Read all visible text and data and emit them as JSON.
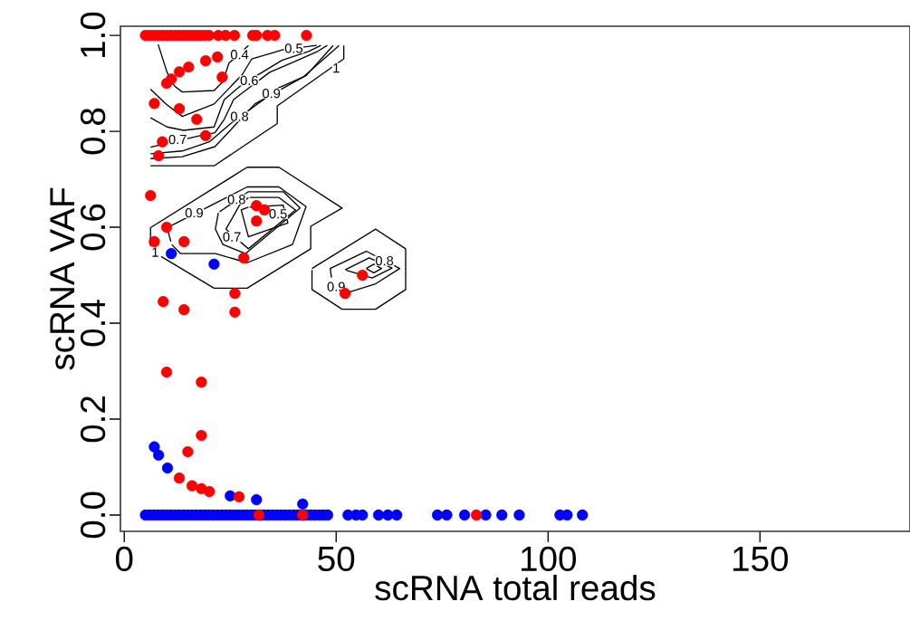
{
  "chart_data": {
    "type": "scatter",
    "xlabel": "scRNA total reads",
    "ylabel": "scRNA VAF",
    "marker": "circle",
    "xlim": [
      -0.9,
      185.4
    ],
    "ylim": [
      -0.034,
      1.019
    ],
    "xticks": [
      0,
      50,
      100,
      150
    ],
    "yticks": [
      {
        "value": 0,
        "label": "0.0"
      },
      {
        "value": 0.2,
        "label": "0.2"
      },
      {
        "value": 0.4,
        "label": "0.4"
      },
      {
        "value": 0.6,
        "label": "0.6"
      },
      {
        "value": 0.8,
        "label": "0.8"
      },
      {
        "value": 1,
        "label": "1.0"
      }
    ],
    "series": [
      {
        "type": "line",
        "marker": "none",
        "color": "#000000",
        "x": [
          8.0,
          10.1,
          11.9,
          13.7,
          21.2,
          23.3,
          24.7,
          29.3
        ],
        "values": [
          0.981,
          0.923,
          0.894,
          0.882,
          0.885,
          0.904,
          0.942,
          0.979
        ]
      },
      {
        "type": "line",
        "marker": "none",
        "color": "#000000",
        "x": [
          6.2,
          9.8,
          13.7,
          21.2,
          27.9,
          30.1,
          37.5,
          45.4
        ],
        "values": [
          0.888,
          0.857,
          0.831,
          0.857,
          0.919,
          0.951,
          0.97,
          0.979
        ]
      },
      {
        "type": "line",
        "marker": "none",
        "color": "#000000",
        "x": [
          6.2,
          10.1,
          14.0,
          21.2,
          23.6,
          27.9,
          37.2,
          43.6,
          46.4
        ],
        "values": [
          0.828,
          0.809,
          0.802,
          0.809,
          0.866,
          0.898,
          0.948,
          0.967,
          0.979
        ]
      },
      {
        "type": "line",
        "marker": "none",
        "color": "#000000",
        "x": [
          6.2,
          17.9,
          21.4,
          23.6,
          25.8,
          28.6,
          34.3,
          39.3,
          45.7,
          47.9
        ],
        "values": [
          0.767,
          0.791,
          0.797,
          0.825,
          0.866,
          0.885,
          0.923,
          0.942,
          0.967,
          0.979
        ]
      },
      {
        "type": "line",
        "marker": "none",
        "color": "#000000",
        "x": [
          6.2,
          13.7,
          20.1,
          25.1,
          32.9,
          36.5,
          42.9,
          49.3
        ],
        "values": [
          0.753,
          0.759,
          0.778,
          0.816,
          0.866,
          0.891,
          0.916,
          0.979
        ]
      },
      {
        "type": "line",
        "marker": "none",
        "color": "#000000",
        "x": [
          6.2,
          13.7,
          21.4,
          26.5,
          30.8,
          42.2,
          50.7
        ],
        "values": [
          0.743,
          0.747,
          0.768,
          0.816,
          0.857,
          0.913,
          0.979
        ]
      },
      {
        "type": "line",
        "marker": "none",
        "color": "#000000",
        "x": [
          6.2,
          21.2,
          36.1,
          36.1,
          51.8,
          51.8
        ],
        "values": [
          0.728,
          0.728,
          0.816,
          0.853,
          0.951,
          0.979
        ]
      },
      {
        "type": "line",
        "marker": "none",
        "color": "#000000",
        "x": [
          8.7,
          21.2,
          29.0,
          44.0,
          44.0,
          51.4,
          36.5,
          29.0,
          6.2,
          6.2
        ],
        "values": [
          0.539,
          0.473,
          0.473,
          0.555,
          0.602,
          0.64,
          0.725,
          0.725,
          0.599,
          0.56
        ]
      },
      {
        "type": "line",
        "marker": "none",
        "color": "#000000",
        "x": [
          11.2,
          13.3,
          21.5,
          29.0,
          39.7,
          42.9,
          36.5,
          29.0,
          10.1,
          11.0
        ],
        "values": [
          0.564,
          0.545,
          0.545,
          0.526,
          0.564,
          0.643,
          0.684,
          0.684,
          0.599,
          0.57
        ]
      },
      {
        "type": "line",
        "marker": "none",
        "color": "#000000",
        "x": [
          22.2,
          21.5,
          23.3,
          28.6,
          41.5,
          37.5,
          29.3,
          22.5
        ],
        "values": [
          0.63,
          0.596,
          0.564,
          0.545,
          0.64,
          0.674,
          0.674,
          0.632
        ]
      },
      {
        "type": "line",
        "marker": "none",
        "color": "#000000",
        "x": [
          29.3,
          27.2,
          24.0,
          29.3,
          40.4,
          36.5,
          29.6
        ],
        "values": [
          0.662,
          0.646,
          0.596,
          0.555,
          0.636,
          0.662,
          0.662
        ]
      },
      {
        "type": "line",
        "marker": "none",
        "color": "#000000",
        "x": [
          29.3,
          27.6,
          29.3,
          38.6,
          37.5,
          29.6
        ],
        "values": [
          0.642,
          0.636,
          0.58,
          0.609,
          0.646,
          0.642
        ]
      },
      {
        "type": "line",
        "marker": "none",
        "color": "#000000",
        "x": [
          44.3,
          59.3,
          66.4,
          66.4,
          59.3,
          51.4,
          44.3,
          44.3
        ],
        "values": [
          0.514,
          0.596,
          0.555,
          0.47,
          0.429,
          0.429,
          0.47,
          0.511
        ]
      },
      {
        "type": "line",
        "marker": "none",
        "color": "#000000",
        "x": [
          48.9,
          48.6,
          57.1,
          65.0,
          59.3,
          52.8
        ],
        "values": [
          0.495,
          0.514,
          0.55,
          0.514,
          0.482,
          0.464
        ]
      },
      {
        "type": "line",
        "marker": "none",
        "color": "#000000",
        "x": [
          52.1,
          57.8,
          63.2,
          58.5,
          52.4
        ],
        "values": [
          0.511,
          0.536,
          0.515,
          0.494,
          0.51
        ]
      },
      {
        "type": "line",
        "marker": "none",
        "color": "#000000",
        "x": [
          57.1,
          58.9,
          60.7,
          58.9,
          57.2
        ],
        "values": [
          0.514,
          0.523,
          0.514,
          0.505,
          0.513
        ]
      },
      {
        "color": "#0000ff",
        "x": [
          5,
          6,
          7,
          8,
          9,
          10,
          11,
          12,
          13,
          14,
          15,
          16,
          17,
          18,
          19,
          20,
          21,
          22,
          23,
          24,
          25,
          26,
          27,
          28,
          29,
          30,
          31,
          32,
          33,
          34,
          35,
          36,
          37,
          38,
          39,
          40,
          41,
          42,
          43,
          44,
          45,
          46,
          47,
          48,
          52.8,
          54.7,
          56.2,
          60.0,
          62.2,
          64.3,
          73.9,
          76.1,
          80.3,
          85.3,
          89.1,
          93.2,
          102.8,
          104.5,
          108.1,
          7.1,
          8.1,
          10.2,
          25.0,
          31.2,
          42.1,
          11.1,
          21.2
        ],
        "values": [
          0,
          0,
          0,
          0,
          0,
          0,
          0,
          0,
          0,
          0,
          0,
          0,
          0,
          0,
          0,
          0,
          0,
          0,
          0,
          0,
          0,
          0,
          0,
          0,
          0,
          0,
          0,
          0,
          0,
          0,
          0,
          0,
          0,
          0,
          0,
          0,
          0,
          0,
          0,
          0,
          0,
          0,
          0,
          0,
          0,
          0,
          0,
          0,
          0,
          0,
          0,
          0,
          0,
          0,
          0,
          0,
          0,
          0,
          0,
          0.142,
          0.125,
          0.098,
          0.04,
          0.032,
          0.023,
          0.545,
          0.523
        ]
      },
      {
        "color": "#ff0000",
        "x": [
          5,
          6,
          7,
          8,
          9,
          10,
          11,
          12,
          13,
          14,
          15,
          16,
          17,
          18,
          19,
          20,
          22.2,
          23.9,
          26.0,
          30.3,
          31.2,
          33.8,
          35.5,
          43.0,
          19.2,
          22.0,
          15.2,
          13.0,
          11.1,
          10.0,
          23.1,
          7.1,
          13.0,
          17.1,
          19.2,
          9.0,
          8.1,
          6.2,
          10.0,
          7.1,
          14.1,
          31.2,
          33.1,
          31.2,
          28.2,
          56.2,
          52.1,
          26.1,
          9.2,
          14.1,
          26.1,
          10.0,
          18.2,
          18.2,
          15.0,
          13.0,
          16.0,
          18.2,
          20.1,
          27.1,
          31.8,
          42.1,
          83.1
        ],
        "values": [
          1,
          1,
          1,
          1,
          1,
          1,
          1,
          1,
          1,
          1,
          1,
          1,
          1,
          1,
          1,
          1,
          1,
          1,
          1,
          1,
          1,
          1,
          1,
          1,
          0.947,
          0.955,
          0.934,
          0.924,
          0.909,
          0.9,
          0.913,
          0.858,
          0.847,
          0.825,
          0.791,
          0.778,
          0.749,
          0.666,
          0.6,
          0.57,
          0.57,
          0.645,
          0.636,
          0.613,
          0.536,
          0.5,
          0.462,
          0.462,
          0.445,
          0.428,
          0.423,
          0.298,
          0.277,
          0.166,
          0.132,
          0.077,
          0.061,
          0.055,
          0.049,
          0.038,
          0,
          0,
          0
        ]
      }
    ],
    "annotations": [
      {
        "text": "0.4",
        "x": 27.2,
        "y": 0.96
      },
      {
        "text": "0.5",
        "x": 40.0,
        "y": 0.973
      },
      {
        "text": "0.6",
        "x": 29.5,
        "y": 0.906
      },
      {
        "text": "0.7",
        "x": 12.6,
        "y": 0.783
      },
      {
        "text": "0.8",
        "x": 27.2,
        "y": 0.831
      },
      {
        "text": "0.9",
        "x": 34.7,
        "y": 0.879
      },
      {
        "text": "1",
        "x": 50.0,
        "y": 0.932
      },
      {
        "text": "1",
        "x": 7.3,
        "y": 0.548
      },
      {
        "text": "0.9",
        "x": 16.5,
        "y": 0.63
      },
      {
        "text": "0.8",
        "x": 26.5,
        "y": 0.658
      },
      {
        "text": "0.7",
        "x": 25.4,
        "y": 0.58
      },
      {
        "text": "0.5",
        "x": 36.3,
        "y": 0.628
      },
      {
        "text": "0.9",
        "x": 50.0,
        "y": 0.476
      },
      {
        "text": "0.8",
        "x": 61.4,
        "y": 0.53
      }
    ]
  }
}
